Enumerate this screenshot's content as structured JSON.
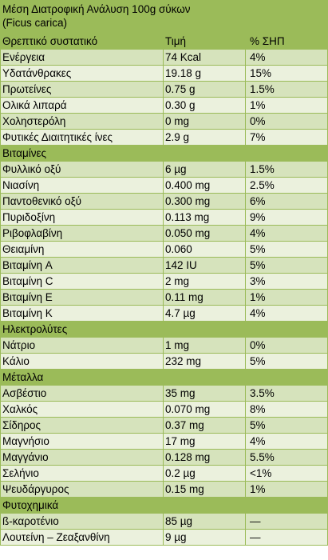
{
  "title_line1": "Μέση Διατροφική Ανάλυση 100g σύκων",
  "title_line2": "(Ficus carica)",
  "header": {
    "col1": "Θρεπτικό συστατικό",
    "col2": "Τιμή",
    "col3": "% ΣΗΠ"
  },
  "sections": [
    {
      "label": "",
      "rows": [
        {
          "name": "Ενέργεια",
          "value": "74 Kcal",
          "pct": "4%"
        },
        {
          "name": "Υδατάνθρακες",
          "value": "19.18 g",
          "pct": "15%"
        },
        {
          "name": "Πρωτείνες",
          "value": "0.75 g",
          "pct": "1.5%"
        },
        {
          "name": "Ολικά λιπαρά",
          "value": "0.30 g",
          "pct": "1%"
        },
        {
          "name": "Χοληστερόλη",
          "value": "0 mg",
          "pct": "0%"
        },
        {
          "name": "Φυτικές Διαιτητικές ίνες",
          "value": "2.9 g",
          "pct": "7%"
        }
      ]
    },
    {
      "label": "Βιταμίνες",
      "rows": [
        {
          "name": "Φυλλικό οξύ",
          "value": "6 µg",
          "pct": "1.5%"
        },
        {
          "name": "Νιασίνη",
          "value": "0.400 mg",
          "pct": "2.5%"
        },
        {
          "name": "Παντοθενικό οξύ",
          "value": "0.300 mg",
          "pct": "6%"
        },
        {
          "name": "Πυριδοξίνη",
          "value": "0.113 mg",
          "pct": "9%"
        },
        {
          "name": "Ριβοφλαβίνη",
          "value": "0.050 mg",
          "pct": "4%"
        },
        {
          "name": "Θειαμίνη",
          "value": "0.060",
          "pct": "5%"
        },
        {
          "name": "Βιταμίνη  A",
          "value": "142 IU",
          "pct": "5%"
        },
        {
          "name": "Βιταμίνη  C",
          "value": "2 mg",
          "pct": "3%"
        },
        {
          "name": "Βιταμίνη  E",
          "value": "0.11 mg",
          "pct": "1%"
        },
        {
          "name": "Βιταμίνη K",
          "value": "4.7 µg",
          "pct": "4%"
        }
      ]
    },
    {
      "label": "Ηλεκτρολύτες",
      "rows": [
        {
          "name": "Νάτριο",
          "value": "1 mg",
          "pct": "0%"
        },
        {
          "name": "Κάλιο",
          "value": "232 mg",
          "pct": "5%"
        }
      ]
    },
    {
      "label": "Μέταλλα",
      "rows": [
        {
          "name": "Ασβέστιο",
          "value": "35 mg",
          "pct": "3.5%"
        },
        {
          "name": "Χαλκός",
          "value": "0.070 mg",
          "pct": "8%"
        },
        {
          "name": "Σίδηρος",
          "value": "0.37 mg",
          "pct": "5%"
        },
        {
          "name": "Μαγνήσιο",
          "value": "17 mg",
          "pct": "4%"
        },
        {
          "name": "Μαγγάνιο",
          "value": "0.128 mg",
          "pct": "5.5%"
        },
        {
          "name": "Σελήνιο",
          "value": "0.2 µg",
          "pct": "<1%"
        },
        {
          "name": "Ψευδάργυρος",
          "value": "0.15 mg",
          "pct": "1%"
        }
      ]
    },
    {
      "label": "Φυτοχημικά",
      "rows": [
        {
          "name": "ß-καροτένιο",
          "value": "85 µg",
          "pct": "—"
        },
        {
          "name": "Λουτείνη – Ζεαξανθίνη",
          "value": "9 µg",
          "pct": "—"
        }
      ]
    }
  ],
  "colors": {
    "header": "#9bbb59",
    "row_dark": "#d6e3bc",
    "row_light": "#ebf1dd",
    "border": "#9bbb59"
  }
}
